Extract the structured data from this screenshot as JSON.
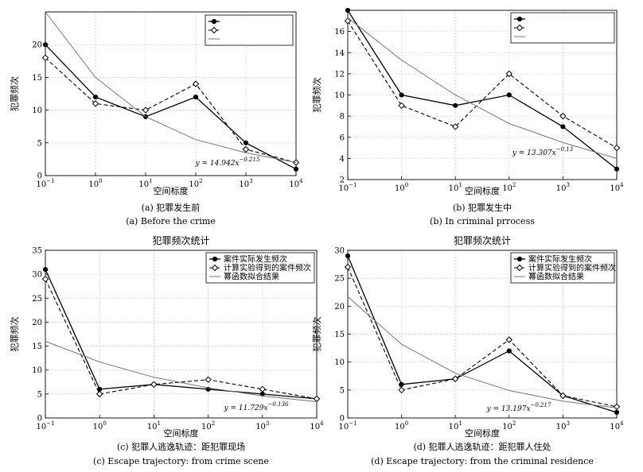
{
  "figure": {
    "colors": {
      "actual": "#000000",
      "computed": "#000000",
      "fit": "#777777",
      "grid": "#c8c8c8"
    }
  },
  "chart_data": [
    {
      "type": "line",
      "title": "",
      "xlabel": "空间标度",
      "ylabel": "犯罪频次",
      "x_scale": "log",
      "xlim": [
        0.1,
        10000
      ],
      "ylim": [
        0,
        25
      ],
      "y_ticks": [
        0,
        5,
        10,
        15,
        20
      ],
      "x": [
        0.1,
        1,
        10,
        100,
        1000,
        10000
      ],
      "x_tick_labels": [
        {
          "base": "10",
          "exp": "−1"
        },
        {
          "base": "10",
          "exp": "0"
        },
        {
          "base": "10",
          "exp": "1"
        },
        {
          "base": "10",
          "exp": "2"
        },
        {
          "base": "10",
          "exp": "3"
        },
        {
          "base": "10",
          "exp": "4"
        }
      ],
      "series": [
        {
          "values": [
            20,
            12,
            9,
            12,
            5,
            1
          ]
        },
        {
          "values": [
            18,
            11,
            10,
            14,
            4,
            2
          ]
        },
        {
          "values": [
            25,
            15,
            9,
            5.5,
            3.5,
            2
          ]
        }
      ],
      "legend": {
        "position": "top-right",
        "entries": [
          "",
          "",
          ""
        ]
      },
      "fit_annotation": {
        "prefix": "y = 14.942x",
        "exponent": "−0.215"
      },
      "caption_zh": "(a) 犯罪发生前",
      "caption_en": "(a) Before the crime"
    },
    {
      "type": "line",
      "title": "",
      "xlabel": "空间标度",
      "ylabel": "犯罪频次",
      "x_scale": "log",
      "xlim": [
        0.1,
        10000
      ],
      "ylim": [
        2,
        18
      ],
      "y_ticks": [
        2,
        4,
        6,
        8,
        10,
        12,
        14,
        16
      ],
      "x": [
        0.1,
        1,
        10,
        100,
        1000,
        10000
      ],
      "x_tick_labels": [
        {
          "base": "10",
          "exp": "−1"
        },
        {
          "base": "10",
          "exp": "0"
        },
        {
          "base": "10",
          "exp": "1"
        },
        {
          "base": "10",
          "exp": "2"
        },
        {
          "base": "10",
          "exp": "3"
        },
        {
          "base": "10",
          "exp": "4"
        }
      ],
      "series": [
        {
          "values": [
            18,
            10,
            9,
            10,
            7,
            3
          ]
        },
        {
          "values": [
            17,
            9,
            7,
            12,
            8,
            5
          ]
        },
        {
          "values": [
            17.3,
            13.3,
            10,
            7.3,
            5.5,
            4
          ]
        }
      ],
      "legend": {
        "position": "top-right",
        "entries": [
          "",
          "",
          ""
        ]
      },
      "fit_annotation": {
        "prefix": "y = 13.307x",
        "exponent": "−0.13"
      },
      "caption_zh": "(b) 犯罪发生中",
      "caption_en": "(b) In criminal prrocess"
    },
    {
      "type": "line",
      "title": "犯罪频次统计",
      "xlabel": "空间标度",
      "ylabel": "犯罪频次",
      "x_scale": "log",
      "xlim": [
        0.1,
        10000
      ],
      "ylim": [
        0,
        35
      ],
      "y_ticks": [
        0,
        5,
        10,
        15,
        20,
        25,
        30,
        35
      ],
      "x": [
        0.1,
        1,
        10,
        100,
        1000,
        10000
      ],
      "x_tick_labels": [
        {
          "base": "10",
          "exp": "−1"
        },
        {
          "base": "10",
          "exp": "0"
        },
        {
          "base": "10",
          "exp": "1"
        },
        {
          "base": "10",
          "exp": "2"
        },
        {
          "base": "10",
          "exp": "3"
        },
        {
          "base": "10",
          "exp": "4"
        }
      ],
      "series": [
        {
          "name": "案件实际发生频次",
          "values": [
            31,
            6,
            7,
            6,
            5,
            4
          ]
        },
        {
          "name": "计算实验得到的案件频次",
          "values": [
            29,
            5,
            7,
            8,
            6,
            4
          ]
        },
        {
          "name": "幂函数拟合结果",
          "values": [
            16,
            11.7,
            8.5,
            6.3,
            4.6,
            3.4
          ]
        }
      ],
      "legend": {
        "position": "top-right",
        "entries": [
          "案件实际发生频次",
          "计算实验得到的案件频次",
          "幂函数拟合结果"
        ]
      },
      "fit_annotation": {
        "prefix": "y = 11.729x",
        "exponent": "−0.136"
      },
      "caption_zh": "(c) 犯罪人逃逸轨迹：距犯罪现场",
      "caption_en": "(c) Escape trajectory: from crime scene"
    },
    {
      "type": "line",
      "title": "犯罪频次统计",
      "xlabel": "空间标度",
      "ylabel": "犯罪频次",
      "x_scale": "log",
      "xlim": [
        0.1,
        10000
      ],
      "ylim": [
        0,
        30
      ],
      "y_ticks": [
        0,
        5,
        10,
        15,
        20,
        25,
        30
      ],
      "x": [
        0.1,
        1,
        10,
        100,
        1000,
        10000
      ],
      "x_tick_labels": [
        {
          "base": "10",
          "exp": "−1"
        },
        {
          "base": "10",
          "exp": "0"
        },
        {
          "base": "10",
          "exp": "1"
        },
        {
          "base": "10",
          "exp": "2"
        },
        {
          "base": "10",
          "exp": "3"
        },
        {
          "base": "10",
          "exp": "4"
        }
      ],
      "series": [
        {
          "name": "案件实际发生频次",
          "values": [
            29,
            6,
            7,
            12,
            4,
            1
          ]
        },
        {
          "name": "计算实验得到的案件频次",
          "values": [
            27,
            5,
            7,
            14,
            4,
            2
          ]
        },
        {
          "name": "幂函数拟合结果",
          "values": [
            21.7,
            13.2,
            8,
            4.9,
            3,
            1.8
          ]
        }
      ],
      "legend": {
        "position": "top-right",
        "entries": [
          "案件实际发生频次",
          "计算实验得到的案件频次",
          "幂函数拟合结果"
        ]
      },
      "fit_annotation": {
        "prefix": "y = 13.197x",
        "exponent": "−0.217"
      },
      "caption_zh": "(d) 犯罪人逃逸轨迹：距犯罪人住处",
      "caption_en": "(d) Escape trajectory: from the criminal residence"
    }
  ]
}
